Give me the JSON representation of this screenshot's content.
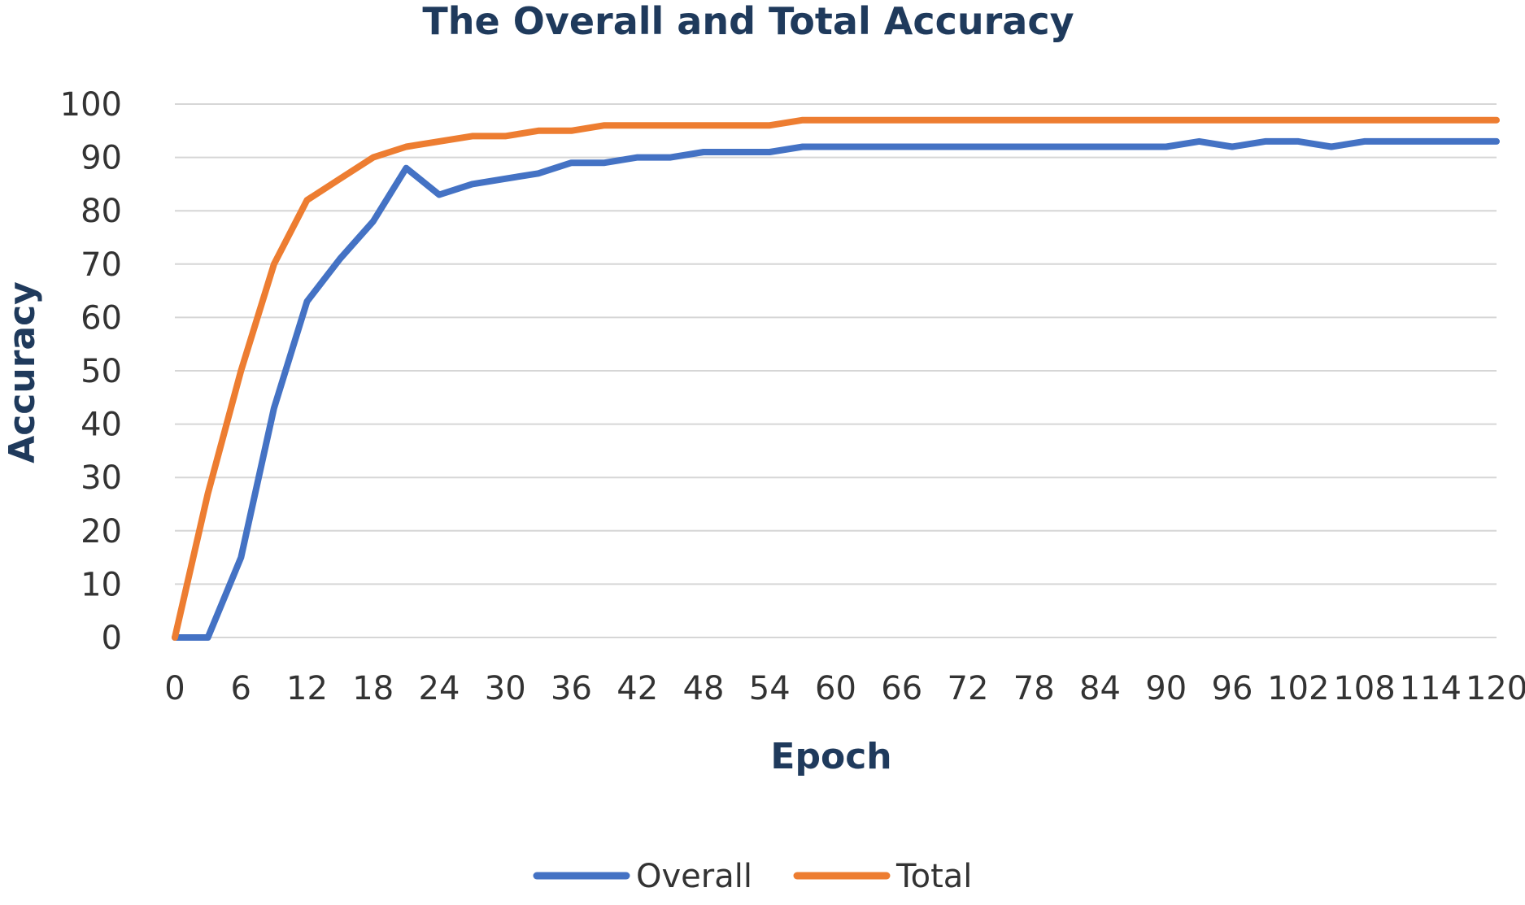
{
  "chart_data": {
    "type": "line",
    "title": "The Overall and Total Accuracy",
    "xlabel": "Epoch",
    "ylabel": "Accuracy",
    "ylim": [
      0,
      100
    ],
    "yticks": [
      0,
      10,
      20,
      30,
      40,
      50,
      60,
      70,
      80,
      90,
      100
    ],
    "xlim": [
      0,
      120
    ],
    "xticks": [
      0,
      6,
      12,
      18,
      24,
      30,
      36,
      42,
      48,
      54,
      60,
      66,
      72,
      78,
      84,
      90,
      96,
      102,
      108,
      114,
      120
    ],
    "grid": "horizontal",
    "legend_position": "bottom",
    "x": [
      0,
      3,
      6,
      9,
      12,
      15,
      18,
      21,
      24,
      27,
      30,
      33,
      36,
      39,
      42,
      45,
      48,
      51,
      54,
      57,
      60,
      63,
      66,
      69,
      72,
      75,
      78,
      81,
      84,
      87,
      90,
      93,
      96,
      99,
      102,
      105,
      108,
      111,
      114,
      117,
      120
    ],
    "series": [
      {
        "name": "Overall",
        "color": "#4472c4",
        "values": [
          0,
          0,
          15,
          43,
          63,
          71,
          78,
          88,
          83,
          85,
          86,
          87,
          89,
          89,
          90,
          90,
          91,
          91,
          91,
          92,
          92,
          92,
          92,
          92,
          92,
          92,
          92,
          92,
          92,
          92,
          92,
          93,
          92,
          93,
          93,
          92,
          93,
          93,
          93,
          93,
          93
        ]
      },
      {
        "name": "Total",
        "color": "#ed7d31",
        "values": [
          0,
          27,
          50,
          70,
          82,
          86,
          90,
          92,
          93,
          94,
          94,
          95,
          95,
          96,
          96,
          96,
          96,
          96,
          96,
          97,
          97,
          97,
          97,
          97,
          97,
          97,
          97,
          97,
          97,
          97,
          97,
          97,
          97,
          97,
          97,
          97,
          97,
          97,
          97,
          97,
          97
        ]
      }
    ]
  }
}
